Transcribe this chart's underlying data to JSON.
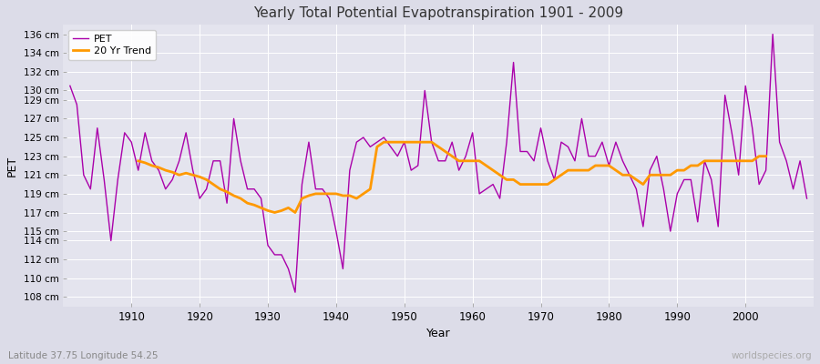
{
  "title": "Yearly Total Potential Evapotranspiration 1901 - 2009",
  "xlabel": "Year",
  "ylabel": "PET",
  "subtitle": "Latitude 37.75 Longitude 54.25",
  "watermark": "worldspecies.org",
  "background_color": "#dcdce8",
  "plot_bg_color": "#e4e4ee",
  "pet_color": "#aa00aa",
  "trend_color": "#ff9900",
  "ylim": [
    107,
    137
  ],
  "ytick_labels": [
    "108 cm",
    "110 cm",
    "112 cm",
    "114 cm",
    "115 cm",
    "117 cm",
    "119 cm",
    "121 cm",
    "123 cm",
    "125 cm",
    "127 cm",
    "129 cm",
    "130 cm",
    "132 cm",
    "134 cm",
    "136 cm"
  ],
  "ytick_values": [
    108,
    110,
    112,
    114,
    115,
    117,
    119,
    121,
    123,
    125,
    127,
    129,
    130,
    132,
    134,
    136
  ],
  "years": [
    1901,
    1902,
    1903,
    1904,
    1905,
    1906,
    1907,
    1908,
    1909,
    1910,
    1911,
    1912,
    1913,
    1914,
    1915,
    1916,
    1917,
    1918,
    1919,
    1920,
    1921,
    1922,
    1923,
    1924,
    1925,
    1926,
    1927,
    1928,
    1929,
    1930,
    1931,
    1932,
    1933,
    1934,
    1935,
    1936,
    1937,
    1938,
    1939,
    1940,
    1941,
    1942,
    1943,
    1944,
    1945,
    1946,
    1947,
    1948,
    1949,
    1950,
    1951,
    1952,
    1953,
    1954,
    1955,
    1956,
    1957,
    1958,
    1959,
    1960,
    1961,
    1962,
    1963,
    1964,
    1965,
    1966,
    1967,
    1968,
    1969,
    1970,
    1971,
    1972,
    1973,
    1974,
    1975,
    1976,
    1977,
    1978,
    1979,
    1980,
    1981,
    1982,
    1983,
    1984,
    1985,
    1986,
    1987,
    1988,
    1989,
    1990,
    1991,
    1992,
    1993,
    1994,
    1995,
    1996,
    1997,
    1998,
    1999,
    2000,
    2001,
    2002,
    2003,
    2004,
    2005,
    2006,
    2007,
    2008,
    2009
  ],
  "pet_values": [
    130.5,
    128.5,
    121.0,
    119.5,
    126.0,
    120.5,
    114.0,
    120.5,
    125.5,
    124.5,
    121.5,
    125.5,
    122.5,
    121.5,
    119.5,
    120.5,
    122.5,
    125.5,
    121.5,
    118.5,
    119.5,
    122.5,
    122.5,
    118.0,
    127.0,
    122.5,
    119.5,
    119.5,
    118.5,
    113.5,
    112.5,
    112.5,
    111.0,
    108.5,
    120.0,
    124.5,
    119.5,
    119.5,
    118.5,
    115.0,
    111.0,
    121.5,
    124.5,
    125.0,
    124.0,
    124.5,
    125.0,
    124.0,
    123.0,
    124.5,
    121.5,
    122.0,
    130.0,
    124.5,
    122.5,
    122.5,
    124.5,
    121.5,
    123.0,
    125.5,
    119.0,
    119.5,
    120.0,
    118.5,
    124.5,
    133.0,
    123.5,
    123.5,
    122.5,
    126.0,
    122.5,
    120.5,
    124.5,
    124.0,
    122.5,
    127.0,
    123.0,
    123.0,
    124.5,
    122.0,
    124.5,
    122.5,
    121.0,
    119.5,
    115.5,
    121.5,
    123.0,
    119.5,
    115.0,
    119.0,
    120.5,
    120.5,
    116.0,
    122.5,
    120.5,
    115.5,
    129.5,
    125.5,
    121.0,
    130.5,
    126.0,
    120.0,
    121.5,
    136.0,
    124.5,
    122.5,
    119.5,
    122.5,
    118.5
  ],
  "trend_values": [
    null,
    null,
    null,
    null,
    null,
    null,
    null,
    null,
    null,
    null,
    122.5,
    122.3,
    122.0,
    121.8,
    121.5,
    121.3,
    121.0,
    121.2,
    121.0,
    120.8,
    120.5,
    120.0,
    119.5,
    119.2,
    118.8,
    118.5,
    118.0,
    117.8,
    117.5,
    117.2,
    117.0,
    117.2,
    117.5,
    117.0,
    118.5,
    118.8,
    119.0,
    119.0,
    119.0,
    119.0,
    118.8,
    118.8,
    118.5,
    119.0,
    119.5,
    124.0,
    124.5,
    124.5,
    124.5,
    124.5,
    124.5,
    124.5,
    124.5,
    124.5,
    124.0,
    123.5,
    123.0,
    122.5,
    122.5,
    122.5,
    122.5,
    122.0,
    121.5,
    121.0,
    120.5,
    120.5,
    120.0,
    120.0,
    120.0,
    120.0,
    120.0,
    120.5,
    121.0,
    121.5,
    121.5,
    121.5,
    121.5,
    122.0,
    122.0,
    122.0,
    121.5,
    121.0,
    121.0,
    120.5,
    120.0,
    121.0,
    121.0,
    121.0,
    121.0,
    121.5,
    121.5,
    122.0,
    122.0,
    122.5,
    122.5,
    122.5,
    122.5,
    122.5,
    122.5,
    122.5,
    122.5,
    123.0,
    123.0,
    null,
    null,
    null,
    null,
    null,
    null,
    null,
    null,
    null
  ],
  "xticks": [
    1910,
    1920,
    1930,
    1940,
    1950,
    1960,
    1970,
    1980,
    1990,
    2000
  ],
  "xlim": [
    1900,
    2010
  ]
}
